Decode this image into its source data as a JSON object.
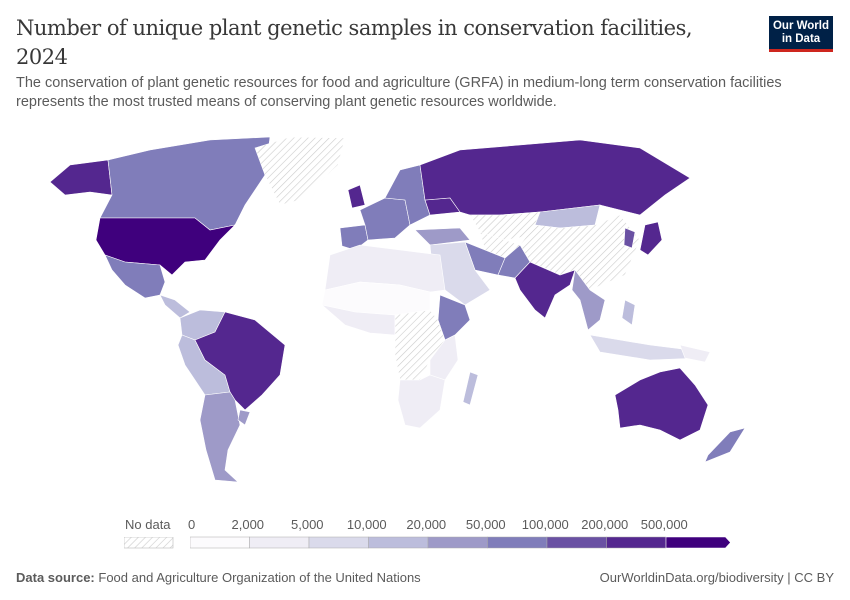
{
  "header": {
    "title": "Number of unique plant genetic samples in conservation facilities, 2024",
    "subtitle": "The conservation of plant genetic resources for food and agriculture (GRFA) in medium-long term conservation facilities represents the most trusted means of conserving plant genetic resources worldwide.",
    "logo_text": "Our World in Data"
  },
  "legend": {
    "no_data_label": "No data",
    "bins": [
      "0",
      "2,000",
      "5,000",
      "10,000",
      "20,000",
      "50,000",
      "100,000",
      "200,000",
      "500,000"
    ],
    "colors": [
      "#fcfbfd",
      "#efedf5",
      "#dadaeb",
      "#bcbddc",
      "#9e9ac8",
      "#807dba",
      "#6a51a3",
      "#54278f",
      "#3f007d"
    ],
    "no_data_color": "hatched"
  },
  "map_regions": {
    "united-states": 8,
    "alaska": 7,
    "canada": 5,
    "greenland": -1,
    "mexico": 5,
    "central-america": 3,
    "colombia-venezuela": 3,
    "peru-bolivia": 3,
    "brazil": 7,
    "argentina-chile": 4,
    "uruguay": 4,
    "north-africa": 1,
    "sahel": 0,
    "west-africa": 1,
    "central-africa": -1,
    "east-africa": 1,
    "ethiopia-kenya": 5,
    "southern-africa": 1,
    "madagascar": 3,
    "western-europe": 5,
    "united-kingdom": 7,
    "iberia": 5,
    "eastern-europe": 5,
    "ukraine": 7,
    "russia": 7,
    "turkey-caucasus": 4,
    "middle-east": 2,
    "iran": 5,
    "central-asia": -1,
    "kazakhstan": -1,
    "mongolia": 3,
    "china": -1,
    "india": 7,
    "pakistan": 5,
    "southeast-asia": 4,
    "indonesia": 2,
    "philippines": 3,
    "japan": 7,
    "korea": 6,
    "australia": 7,
    "new-zealand": 5,
    "papua": 1
  },
  "footer": {
    "source_label": "Data source:",
    "source": "Food and Agriculture Organization of the United Nations",
    "link": "OurWorldinData.org/biodiversity | CC BY"
  }
}
